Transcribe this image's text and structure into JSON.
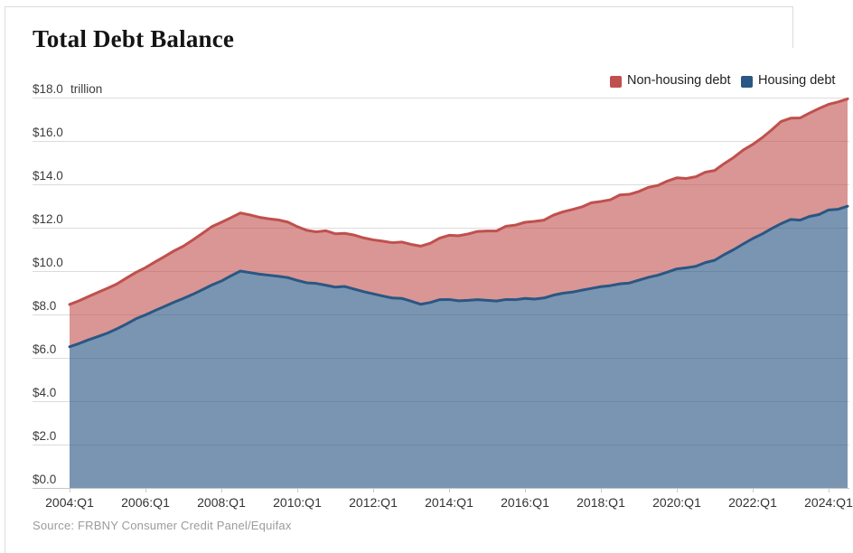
{
  "title": "Total Debt Balance",
  "source": "Source: FRBNY Consumer Credit Panel/Equifax",
  "chart_data": {
    "type": "area",
    "stacked": true,
    "title": "Total Debt Balance",
    "unit": "trillion",
    "ylabel": "$ trillion",
    "ylim": [
      0,
      18
    ],
    "grid": "horizontal",
    "legend_position": "top-right",
    "x_start": "2004:Q1",
    "x_end": "2024:Q3",
    "x_step": "quarter",
    "x_ticks": [
      "2004:Q1",
      "2006:Q1",
      "2008:Q1",
      "2010:Q1",
      "2012:Q1",
      "2014:Q1",
      "2016:Q1",
      "2018:Q1",
      "2020:Q1",
      "2022:Q1",
      "2024:Q1"
    ],
    "y_ticks": [
      {
        "value": 0,
        "label": "$0.0"
      },
      {
        "value": 2,
        "label": "$2.0"
      },
      {
        "value": 4,
        "label": "$4.0"
      },
      {
        "value": 6,
        "label": "$6.0"
      },
      {
        "value": 8,
        "label": "$8.0"
      },
      {
        "value": 10,
        "label": "$10.0"
      },
      {
        "value": 12,
        "label": "$12.0"
      },
      {
        "value": 14,
        "label": "$14.0"
      },
      {
        "value": 16,
        "label": "$16.0"
      },
      {
        "value": 18,
        "label": "$18.0"
      }
    ],
    "series": [
      {
        "name": "Housing debt",
        "color": "#2a5783",
        "fill": "rgba(42,87,131,0.63)",
        "values": [
          6.51,
          6.66,
          6.83,
          6.98,
          7.14,
          7.34,
          7.56,
          7.8,
          7.98,
          8.18,
          8.37,
          8.56,
          8.74,
          8.93,
          9.14,
          9.36,
          9.54,
          9.78,
          10.0,
          9.93,
          9.86,
          9.81,
          9.76,
          9.7,
          9.57,
          9.46,
          9.43,
          9.35,
          9.26,
          9.29,
          9.17,
          9.05,
          8.95,
          8.85,
          8.76,
          8.74,
          8.61,
          8.47,
          8.55,
          8.68,
          8.69,
          8.63,
          8.65,
          8.68,
          8.65,
          8.62,
          8.69,
          8.68,
          8.74,
          8.71,
          8.76,
          8.89,
          8.98,
          9.03,
          9.12,
          9.2,
          9.28,
          9.33,
          9.41,
          9.45,
          9.58,
          9.71,
          9.81,
          9.95,
          10.1,
          10.15,
          10.22,
          10.39,
          10.5,
          10.76,
          10.99,
          11.25,
          11.5,
          11.71,
          11.96,
          12.19,
          12.38,
          12.35,
          12.52,
          12.61,
          12.82,
          12.85,
          12.99
        ]
      },
      {
        "name": "Non-housing debt",
        "color": "#c0504d",
        "fill": "rgba(192,80,77,0.60)",
        "values": [
          1.95,
          1.97,
          2.0,
          2.04,
          2.07,
          2.07,
          2.12,
          2.14,
          2.18,
          2.24,
          2.3,
          2.37,
          2.41,
          2.51,
          2.6,
          2.69,
          2.71,
          2.68,
          2.68,
          2.66,
          2.62,
          2.6,
          2.6,
          2.56,
          2.48,
          2.42,
          2.38,
          2.51,
          2.46,
          2.45,
          2.49,
          2.48,
          2.49,
          2.53,
          2.55,
          2.6,
          2.62,
          2.68,
          2.73,
          2.84,
          2.96,
          3.0,
          3.06,
          3.15,
          3.2,
          3.23,
          3.38,
          3.44,
          3.51,
          3.58,
          3.59,
          3.69,
          3.75,
          3.81,
          3.84,
          3.95,
          3.93,
          3.96,
          4.1,
          4.09,
          4.09,
          4.15,
          4.14,
          4.2,
          4.2,
          4.12,
          4.13,
          4.17,
          4.14,
          4.2,
          4.25,
          4.33,
          4.34,
          4.44,
          4.55,
          4.71,
          4.67,
          4.71,
          4.77,
          4.89,
          4.87,
          4.95,
          4.95
        ]
      }
    ]
  }
}
